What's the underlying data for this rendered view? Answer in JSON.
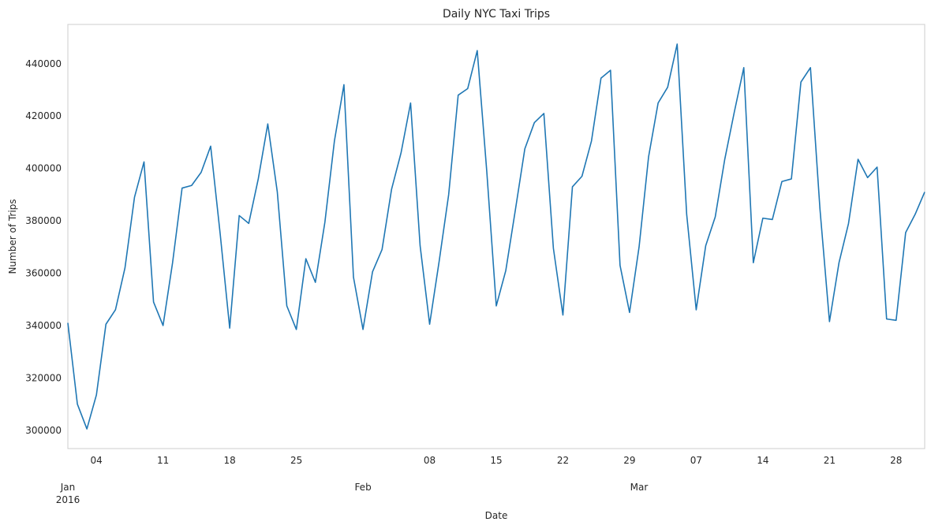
{
  "chart_data": {
    "type": "line",
    "title": "Daily NYC Taxi Trips",
    "xlabel": "Date",
    "ylabel": "Number of Trips",
    "grid": false,
    "legend": "none",
    "line_color": "#1f77b4",
    "start_date": "2016-01-01",
    "x_range": [
      "2016-01-01",
      "2016-03-31"
    ],
    "ylim": [
      293000,
      455000
    ],
    "y_ticks": [
      300000,
      320000,
      340000,
      360000,
      380000,
      400000,
      420000,
      440000
    ],
    "x_ticks": [
      {
        "date": "2016-01-01",
        "label": "Jan",
        "sublabel": "2016",
        "major": true
      },
      {
        "date": "2016-01-04",
        "label": "04",
        "major": false
      },
      {
        "date": "2016-01-11",
        "label": "11",
        "major": false
      },
      {
        "date": "2016-01-18",
        "label": "18",
        "major": false
      },
      {
        "date": "2016-01-25",
        "label": "25",
        "major": false
      },
      {
        "date": "2016-02-01",
        "label": "Feb",
        "major": true
      },
      {
        "date": "2016-02-08",
        "label": "08",
        "major": false
      },
      {
        "date": "2016-02-15",
        "label": "15",
        "major": false
      },
      {
        "date": "2016-02-22",
        "label": "22",
        "major": false
      },
      {
        "date": "2016-02-29",
        "label": "29",
        "major": false
      },
      {
        "date": "2016-03-01",
        "label": "Mar",
        "major": true
      },
      {
        "date": "2016-03-07",
        "label": "07",
        "major": false
      },
      {
        "date": "2016-03-14",
        "label": "14",
        "major": false
      },
      {
        "date": "2016-03-21",
        "label": "21",
        "major": false
      },
      {
        "date": "2016-03-28",
        "label": "28",
        "major": false
      }
    ],
    "series": [
      {
        "values": [
          341000,
          310000,
          300500,
          313500,
          340500,
          346000,
          362000,
          389000,
          402500,
          349000,
          340000,
          364000,
          392500,
          393500,
          398500,
          408500,
          375000,
          339000,
          382000,
          379000,
          396000,
          417000,
          391000,
          347500,
          338500,
          365500,
          356500,
          379500,
          410500,
          432000,
          358500,
          338500,
          360500,
          369000,
          392000,
          406000,
          425000,
          370500,
          340500,
          364500,
          390000,
          428000,
          430500,
          445000,
          399000,
          347500,
          361000,
          384000,
          407500,
          417500,
          421000,
          369500,
          344000,
          393000,
          397000,
          410500,
          434500,
          437500,
          363000,
          345000,
          370000,
          404500,
          425000,
          431000,
          447500,
          382500,
          346000,
          370500,
          381500,
          403500,
          421500,
          438500,
          364000,
          381000,
          380500,
          395000,
          396000,
          433000,
          438500,
          384500,
          341500,
          364000,
          379000,
          403500,
          396500,
          400500,
          342500,
          342000,
          375500,
          382500,
          391000
        ]
      }
    ]
  }
}
